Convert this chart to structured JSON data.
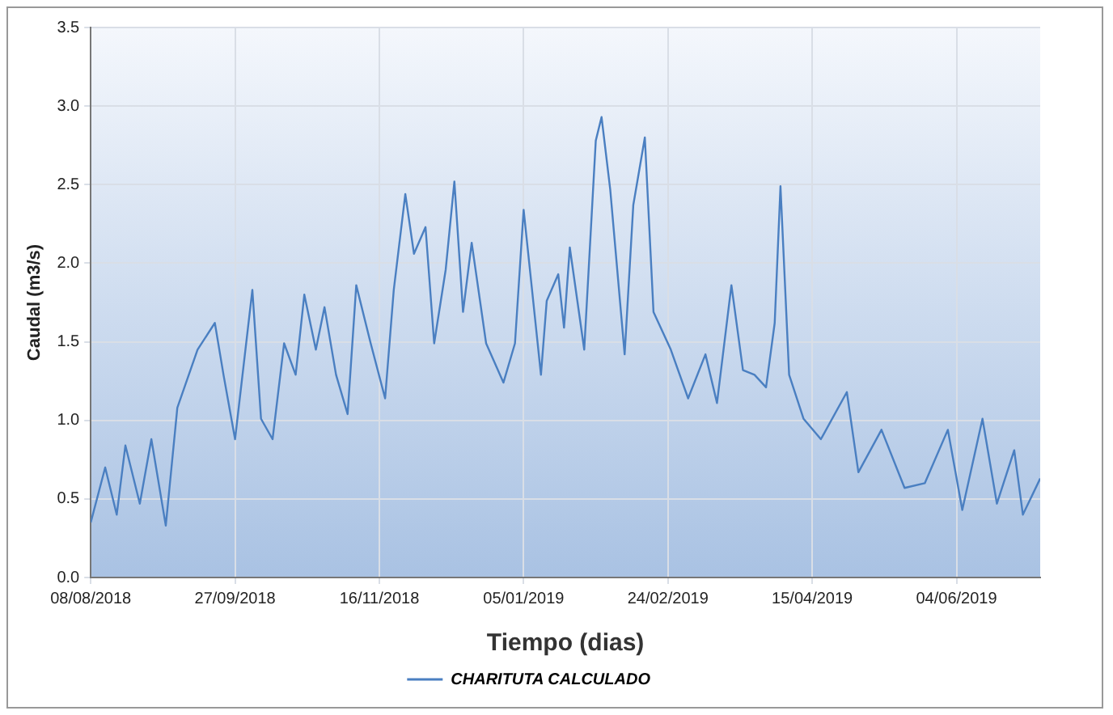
{
  "chart_data": {
    "type": "line",
    "xlabel": "Tiempo (dias)",
    "ylabel": "Caudal (m3/s)",
    "x": [
      "2018-08-08",
      "2018-08-13",
      "2018-08-17",
      "2018-08-20",
      "2018-08-25",
      "2018-08-29",
      "2018-09-03",
      "2018-09-07",
      "2018-09-14",
      "2018-09-20",
      "2018-09-23",
      "2018-09-27",
      "2018-10-03",
      "2018-10-06",
      "2018-10-10",
      "2018-10-14",
      "2018-10-18",
      "2018-10-21",
      "2018-10-25",
      "2018-10-28",
      "2018-11-01",
      "2018-11-05",
      "2018-11-08",
      "2018-11-13",
      "2018-11-18",
      "2018-11-21",
      "2018-11-25",
      "2018-11-28",
      "2018-12-02",
      "2018-12-05",
      "2018-12-09",
      "2018-12-12",
      "2018-12-15",
      "2018-12-18",
      "2018-12-23",
      "2018-12-29",
      "2019-01-02",
      "2019-01-05",
      "2019-01-11",
      "2019-01-13",
      "2019-01-17",
      "2019-01-19",
      "2019-01-21",
      "2019-01-26",
      "2019-01-30",
      "2019-02-01",
      "2019-02-04",
      "2019-02-09",
      "2019-02-12",
      "2019-02-16",
      "2019-02-19",
      "2019-02-25",
      "2019-03-03",
      "2019-03-09",
      "2019-03-13",
      "2019-03-18",
      "2019-03-22",
      "2019-03-26",
      "2019-03-30",
      "2019-04-02",
      "2019-04-04",
      "2019-04-07",
      "2019-04-12",
      "2019-04-18",
      "2019-04-27",
      "2019-05-01",
      "2019-05-09",
      "2019-05-17",
      "2019-05-24",
      "2019-06-01",
      "2019-06-06",
      "2019-06-13",
      "2019-06-18",
      "2019-06-24",
      "2019-06-27",
      "2019-07-03"
    ],
    "series": [
      {
        "name": "CHARITUTA CALCULADO",
        "color": "#4a7fc1",
        "values": [
          0.35,
          0.7,
          0.4,
          0.84,
          0.47,
          0.88,
          0.33,
          1.08,
          1.45,
          1.62,
          1.29,
          0.88,
          1.83,
          1.01,
          0.88,
          1.49,
          1.29,
          1.8,
          1.45,
          1.72,
          1.29,
          1.04,
          1.86,
          1.49,
          1.14,
          1.83,
          2.44,
          2.06,
          2.23,
          1.49,
          1.96,
          2.52,
          1.69,
          2.13,
          1.49,
          1.24,
          1.49,
          2.34,
          1.29,
          1.76,
          1.93,
          1.59,
          2.1,
          1.45,
          2.78,
          2.93,
          2.47,
          1.42,
          2.37,
          2.8,
          1.69,
          1.45,
          1.14,
          1.42,
          1.11,
          1.86,
          1.32,
          1.29,
          1.21,
          1.62,
          2.49,
          1.29,
          1.01,
          0.88,
          1.18,
          0.67,
          0.94,
          0.57,
          0.6,
          0.94,
          0.43,
          1.01,
          0.47,
          0.81,
          0.4,
          0.63
        ]
      }
    ],
    "xlim": [
      "2018-08-08",
      "2019-07-03"
    ],
    "xticks": [
      {
        "value": "2018-08-08",
        "label": "08/08/2018"
      },
      {
        "value": "2018-09-27",
        "label": "27/09/2018"
      },
      {
        "value": "2018-11-16",
        "label": "16/11/2018"
      },
      {
        "value": "2019-01-05",
        "label": "05/01/2019"
      },
      {
        "value": "2019-02-24",
        "label": "24/02/2019"
      },
      {
        "value": "2019-04-15",
        "label": "15/04/2019"
      },
      {
        "value": "2019-06-04",
        "label": "04/06/2019"
      }
    ],
    "ylim": [
      0,
      3.5
    ],
    "yticks": [
      {
        "value": 0,
        "label": "0.0"
      },
      {
        "value": 0.5,
        "label": "0.5"
      },
      {
        "value": 1,
        "label": "1.0"
      },
      {
        "value": 1.5,
        "label": "1.5"
      },
      {
        "value": 2,
        "label": "2.0"
      },
      {
        "value": 2.5,
        "label": "2.5"
      },
      {
        "value": 3,
        "label": "3.0"
      },
      {
        "value": 3.5,
        "label": "3.5"
      }
    ],
    "grid": true,
    "legend": "bottom",
    "marker": "none",
    "line_style": "solid"
  }
}
